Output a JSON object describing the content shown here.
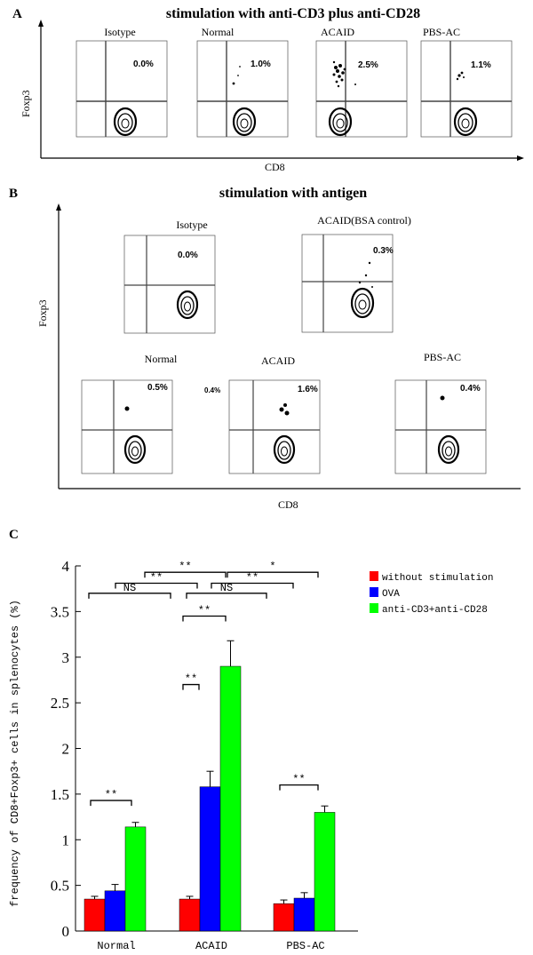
{
  "panel_a": {
    "label": "A",
    "title": "stimulation with anti-CD3 plus anti-CD28",
    "y_label": "Foxp3",
    "x_label": "CD8",
    "plots": [
      {
        "name": "Isotype",
        "pct": "0.0%"
      },
      {
        "name": "Normal",
        "pct": "1.0%"
      },
      {
        "name": "ACAID",
        "pct": "2.5%"
      },
      {
        "name": "PBS-AC",
        "pct": "1.1%"
      }
    ]
  },
  "panel_b": {
    "label": "B",
    "title": "stimulation with antigen",
    "y_label": "Foxp3",
    "x_label": "CD8",
    "plots": [
      {
        "name": "Isotype",
        "pct": "0.0%"
      },
      {
        "name": "ACAID(BSA control)",
        "pct": "0.3%"
      },
      {
        "name": "Normal",
        "pct": "0.5%"
      },
      {
        "name": "ACAID",
        "pct": "1.6%",
        "extra": "0.4%"
      },
      {
        "name": "PBS-AC",
        "pct": "0.4%"
      }
    ]
  },
  "panel_c": {
    "label": "C",
    "legend_colors": [
      "#ff0000",
      "#0000ff",
      "#00ff00"
    ]
  },
  "chart_data": {
    "type": "bar",
    "title": "",
    "xlabel": "",
    "ylabel": "frequency of CD8+Foxp3+ cells in splenocytes (%)",
    "categories": [
      "Normal",
      "ACAID",
      "PBS-AC"
    ],
    "ylim": [
      0,
      4
    ],
    "yticks": [
      "0",
      "0.5",
      "1",
      "1.5",
      "2",
      "2.5",
      "3",
      "3.5",
      "4"
    ],
    "series": [
      {
        "name": "without stimulation",
        "color": "#ff0000",
        "values": [
          0.35,
          0.35,
          0.3
        ],
        "errors": [
          0.03,
          0.03,
          0.04
        ]
      },
      {
        "name": "OVA",
        "color": "#0000ff",
        "values": [
          0.44,
          1.58,
          0.36
        ],
        "errors": [
          0.07,
          0.17,
          0.06
        ]
      },
      {
        "name": "anti-CD3+anti-CD28",
        "color": "#00ff00",
        "values": [
          1.14,
          2.9,
          1.3
        ],
        "errors": [
          0.05,
          0.28,
          0.07
        ]
      }
    ],
    "significance": [
      {
        "label": "**",
        "level": 3.93
      },
      {
        "label": "*",
        "level": 3.93
      },
      {
        "label": "**",
        "level": 3.81
      },
      {
        "label": "**",
        "level": 3.81
      },
      {
        "label": "NS",
        "level": 3.7
      },
      {
        "label": "NS",
        "level": 3.7
      },
      {
        "label": "**",
        "level": 3.45
      },
      {
        "label": "**",
        "level": 2.7
      },
      {
        "label": "**",
        "level": 1.43
      },
      {
        "label": "**",
        "level": 1.6
      }
    ]
  }
}
